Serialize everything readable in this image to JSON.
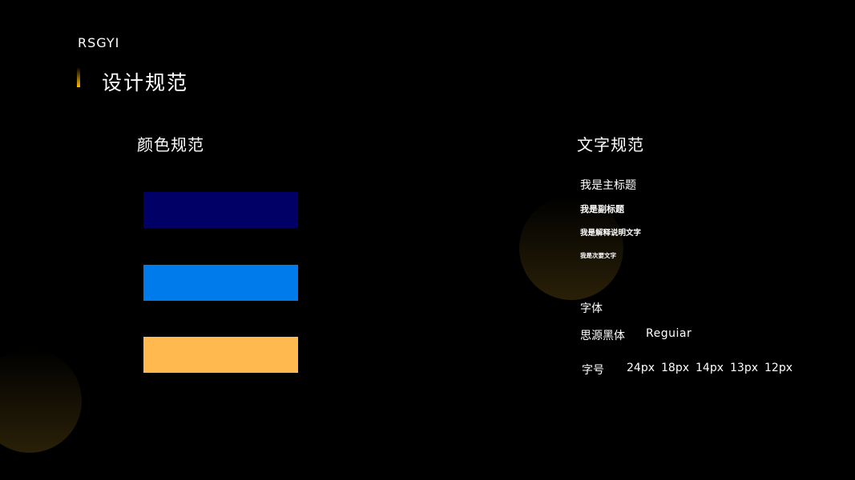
{
  "brand": "RSGYI",
  "title": "设计规范",
  "accent": "#FFB800",
  "color_section": {
    "heading": "颜色规范",
    "swatches": [
      "#000066",
      "#007BEB",
      "#FFB94F"
    ]
  },
  "text_section": {
    "heading": "文字规范",
    "samples": [
      "我是主标题",
      "我是副标题",
      "我是解释说明文字",
      "我是次要文字"
    ],
    "font_label": "字体",
    "font_name": "思源黑体",
    "font_weight": "Reguiar",
    "size_label": "字号",
    "sizes": [
      "24px",
      "18px",
      "14px",
      "13px",
      "12px"
    ]
  }
}
